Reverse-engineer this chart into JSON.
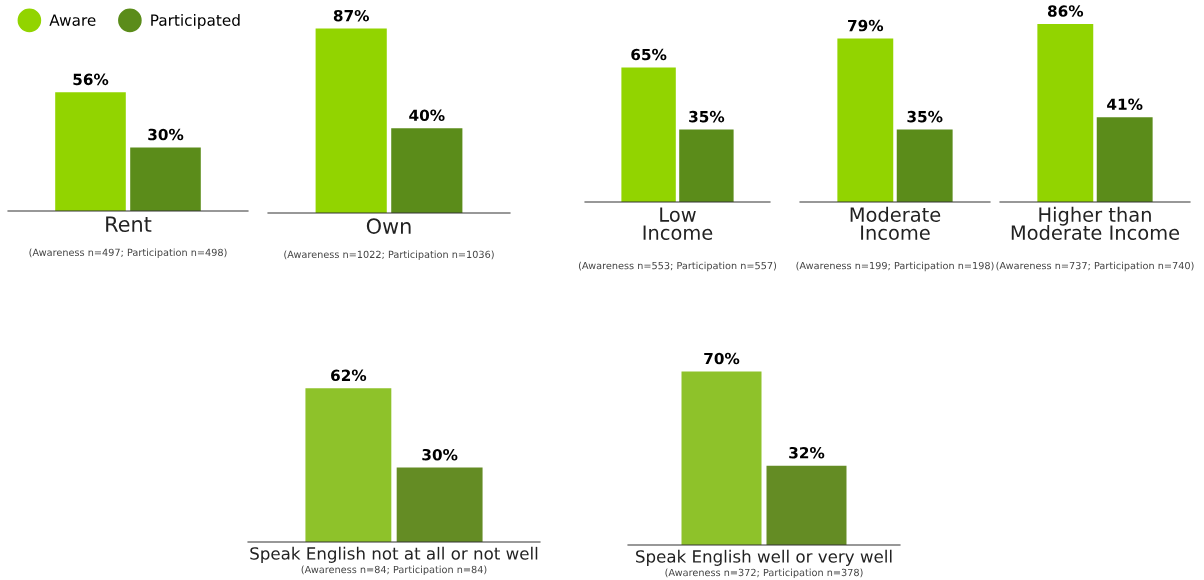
{
  "chart_data": [
    {
      "type": "bar",
      "categories": [
        null
      ],
      "legend": "top left",
      "xlabel": "Rent",
      "annotations": [
        "(Awareness n=497; Participation n=498)"
      ],
      "series": [
        {
          "name": "Aware",
          "color": "#92d400",
          "values": [
            56
          ],
          "value_labels": [
            "56%"
          ]
        },
        {
          "name": "Participated",
          "color": "#5b8c1a",
          "values": [
            30
          ],
          "value_labels": [
            "30%"
          ]
        }
      ]
    },
    {
      "type": "bar",
      "categories": [
        null
      ],
      "xlabel": "Own",
      "annotations": [
        "(Awareness n=1022; Participation n=1036)"
      ],
      "series": [
        {
          "color": "#92d400",
          "values": [
            87
          ],
          "value_labels": [
            "87%"
          ]
        },
        {
          "color": "#5b8c1a",
          "values": [
            40
          ],
          "value_labels": [
            "40%"
          ]
        }
      ]
    },
    {
      "type": "bar",
      "categories": [
        null
      ],
      "xlabel": "Low\nIncome",
      "annotations": [
        "(Awareness n=553; Participation n=557)"
      ],
      "series": [
        {
          "color": "#92d400",
          "values": [
            65
          ],
          "value_labels": [
            "65%"
          ]
        },
        {
          "color": "#5b8c1a",
          "values": [
            35
          ],
          "value_labels": [
            "35%"
          ]
        }
      ]
    },
    {
      "type": "bar",
      "categories": [
        null
      ],
      "xlabel": "Moderate\nIncome",
      "annotations": [
        "(Awareness n=199; Participation n=198)"
      ],
      "series": [
        {
          "color": "#92d400",
          "values": [
            79
          ],
          "value_labels": [
            "79%"
          ]
        },
        {
          "color": "#5b8c1a",
          "values": [
            35
          ],
          "value_labels": [
            "35%"
          ]
        }
      ]
    },
    {
      "type": "bar",
      "categories": [
        null
      ],
      "xlabel": "Higher than\nModerate Income",
      "annotations": [
        "(Awareness n=737; Participation n=740)"
      ],
      "series": [
        {
          "color": "#92d400",
          "values": [
            86
          ],
          "value_labels": [
            "86%"
          ]
        },
        {
          "color": "#5b8c1a",
          "values": [
            41
          ],
          "value_labels": [
            "41%"
          ]
        }
      ]
    },
    {
      "type": "bar",
      "categories": [
        null
      ],
      "xlabel": "Speak English not at all or not well",
      "annotations": [
        "(Awareness n=84; Participation n=84)"
      ],
      "series": [
        {
          "color": "#8ec22a",
          "values": [
            62
          ],
          "value_labels": [
            "62%"
          ]
        },
        {
          "color": "#648c24",
          "values": [
            30
          ],
          "value_labels": [
            "30%"
          ]
        }
      ]
    },
    {
      "type": "bar",
      "categories": [
        null
      ],
      "xlabel": "Speak English well or very well",
      "annotations": [
        "(Awareness n=372; Participation n=378)"
      ],
      "series": [
        {
          "color": "#8ec22a",
          "values": [
            70
          ],
          "value_labels": [
            "70%"
          ]
        },
        {
          "color": "#648c24",
          "values": [
            32
          ],
          "value_labels": [
            "32%"
          ]
        }
      ]
    }
  ]
}
